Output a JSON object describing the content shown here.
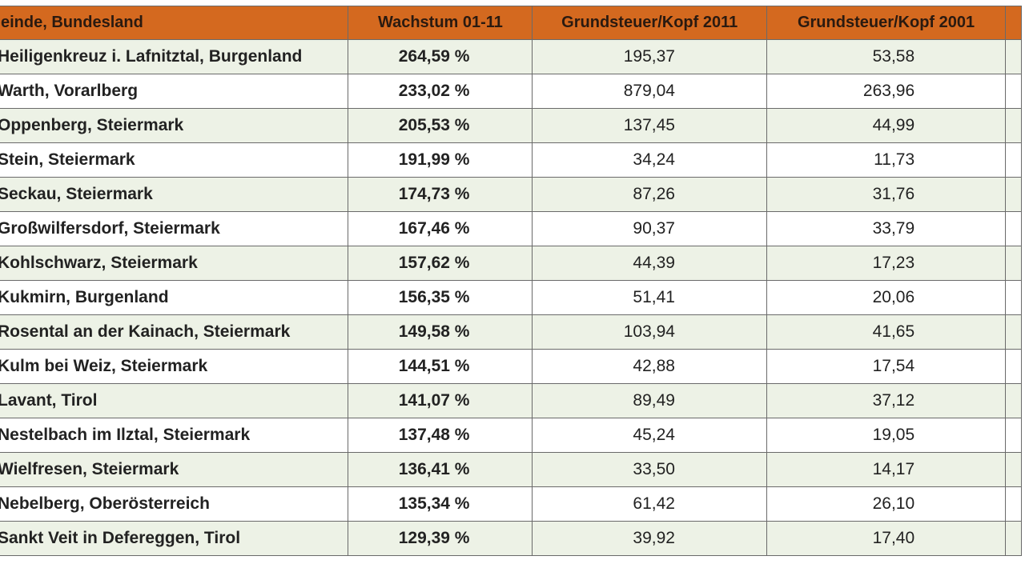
{
  "headers": [
    "einde, Bundesland",
    "Wachstum 01-11",
    "Grundsteuer/Kopf 2011",
    "Grundsteuer/Kopf 2001"
  ],
  "colors": {
    "header": "#d4691f",
    "alt_row": "#edf2e6",
    "border": "#6a6a6a"
  },
  "rows": [
    {
      "name": "Heiligenkreuz i. Lafnitztal, Burgenland",
      "growth": "264,59 %",
      "tax2011": "195,37",
      "tax2001": "53,58"
    },
    {
      "name": "Warth, Vorarlberg",
      "growth": "233,02 %",
      "tax2011": "879,04",
      "tax2001": "263,96"
    },
    {
      "name": "Oppenberg, Steiermark",
      "growth": "205,53 %",
      "tax2011": "137,45",
      "tax2001": "44,99"
    },
    {
      "name": "Stein, Steiermark",
      "growth": "191,99 %",
      "tax2011": "34,24",
      "tax2001": "11,73"
    },
    {
      "name": "Seckau, Steiermark",
      "growth": "174,73 %",
      "tax2011": "87,26",
      "tax2001": "31,76"
    },
    {
      "name": "Großwilfersdorf, Steiermark",
      "growth": "167,46 %",
      "tax2011": "90,37",
      "tax2001": "33,79"
    },
    {
      "name": "Kohlschwarz, Steiermark",
      "growth": "157,62 %",
      "tax2011": "44,39",
      "tax2001": "17,23"
    },
    {
      "name": "Kukmirn, Burgenland",
      "growth": "156,35 %",
      "tax2011": "51,41",
      "tax2001": "20,06"
    },
    {
      "name": "Rosental an der Kainach, Steiermark",
      "growth": "149,58 %",
      "tax2011": "103,94",
      "tax2001": "41,65"
    },
    {
      "name": "Kulm bei Weiz, Steiermark",
      "growth": "144,51 %",
      "tax2011": "42,88",
      "tax2001": "17,54"
    },
    {
      "name": "Lavant, Tirol",
      "growth": "141,07 %",
      "tax2011": "89,49",
      "tax2001": "37,12"
    },
    {
      "name": "Nestelbach im Ilztal, Steiermark",
      "growth": "137,48 %",
      "tax2011": "45,24",
      "tax2001": "19,05"
    },
    {
      "name": "Wielfresen, Steiermark",
      "growth": "136,41 %",
      "tax2011": "33,50",
      "tax2001": "14,17"
    },
    {
      "name": "Nebelberg, Oberösterreich",
      "growth": "135,34 %",
      "tax2011": "61,42",
      "tax2001": "26,10"
    },
    {
      "name": "Sankt Veit in Defereggen, Tirol",
      "growth": "129,39 %",
      "tax2011": "39,92",
      "tax2001": "17,40"
    }
  ]
}
